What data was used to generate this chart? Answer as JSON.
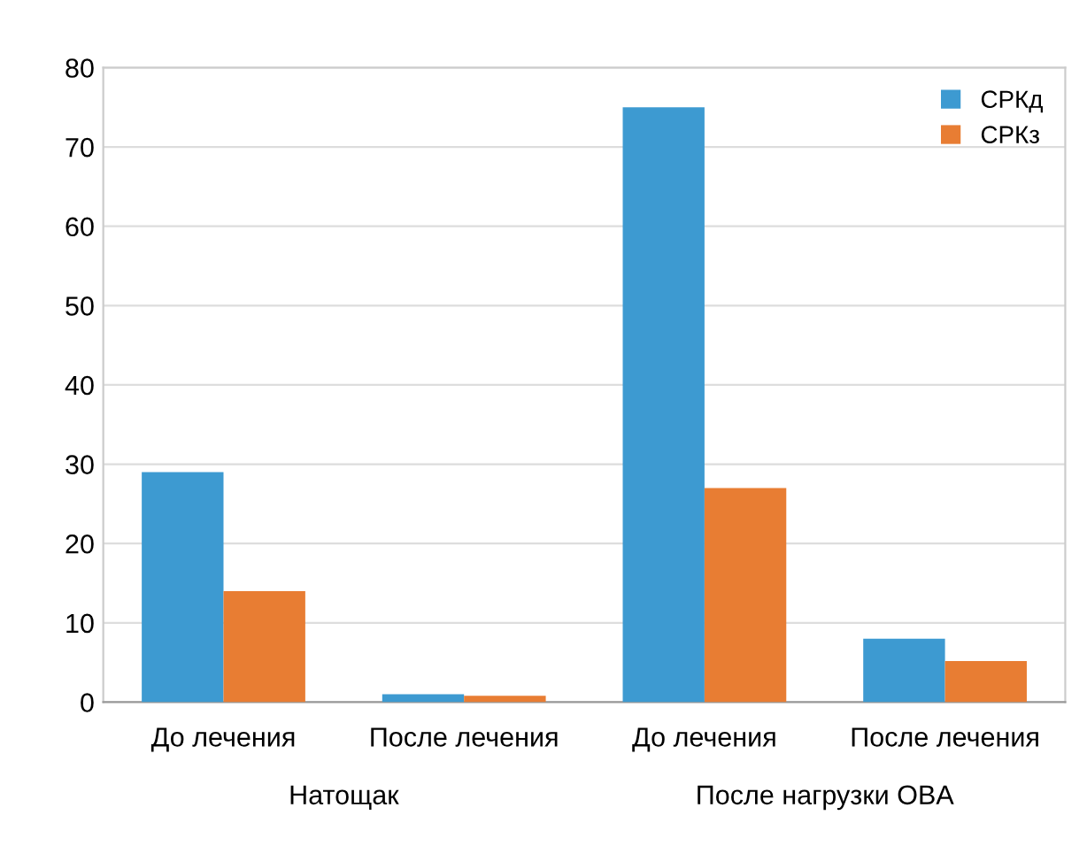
{
  "chart_data": {
    "type": "bar",
    "categories": [
      "До лечения",
      "После лечения",
      "До лечения",
      "После лечения"
    ],
    "series": [
      {
        "name": "СРКд",
        "color": "#3d9ad1",
        "values": [
          29,
          1,
          75,
          8
        ]
      },
      {
        "name": "СРКз",
        "color": "#e87d33",
        "values": [
          14,
          0.8,
          27,
          5.2
        ]
      }
    ],
    "ylim": [
      0,
      80
    ],
    "yticks": [
      0,
      10,
      20,
      30,
      40,
      50,
      60,
      70,
      80
    ],
    "grid": "y",
    "legend": "top right",
    "annotations": [
      "Натощак",
      "После нагрузки OBA"
    ]
  }
}
